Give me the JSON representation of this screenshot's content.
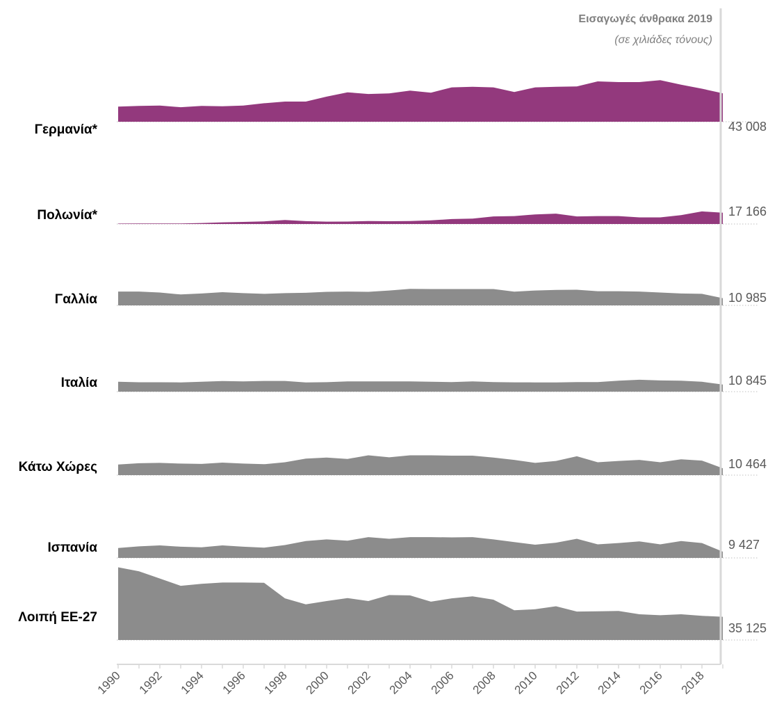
{
  "chart_data": {
    "type": "area",
    "title": "Εισαγωγές άνθρακα 2019",
    "subtitle": "(σε χιλιάδες τόνους)",
    "x": [
      1990,
      1991,
      1992,
      1993,
      1994,
      1995,
      1996,
      1997,
      1998,
      1999,
      2000,
      2001,
      2002,
      2003,
      2004,
      2005,
      2006,
      2007,
      2008,
      2009,
      2010,
      2011,
      2012,
      2013,
      2014,
      2015,
      2016,
      2017,
      2018,
      2019
    ],
    "x_tick_labels": [
      "1990",
      "1992",
      "1994",
      "1996",
      "1998",
      "2000",
      "2002",
      "2004",
      "2006",
      "2008",
      "2010",
      "2012",
      "2014",
      "2016",
      "2018"
    ],
    "grid": false,
    "legend": "none",
    "series": [
      {
        "name": "Γερμανία*",
        "value_label": "43 008",
        "color": "#93397d",
        "values": [
          23000,
          24000,
          24500,
          22000,
          24000,
          23500,
          24500,
          28000,
          30500,
          30500,
          38000,
          44500,
          42000,
          43000,
          47000,
          44000,
          52000,
          53000,
          52000,
          45000,
          52000,
          53000,
          53500,
          61000,
          60000,
          60000,
          63000,
          56000,
          50000,
          43008
        ]
      },
      {
        "name": "Πολωνία*",
        "value_label": "17 166",
        "color": "#93397d",
        "values": [
          600,
          700,
          800,
          800,
          1500,
          2500,
          3200,
          4000,
          6000,
          4300,
          3600,
          3700,
          4500,
          4200,
          4400,
          5500,
          7500,
          8200,
          11500,
          12000,
          14500,
          15700,
          11500,
          12000,
          12000,
          10000,
          10000,
          13500,
          19000,
          17166
        ]
      },
      {
        "name": "Γαλλία",
        "value_label": "10 985",
        "color": "#8c8c8c",
        "values": [
          21000,
          21000,
          19500,
          16500,
          18000,
          20000,
          18500,
          17500,
          18500,
          19000,
          20500,
          21000,
          20500,
          22500,
          25000,
          24700,
          24700,
          24700,
          24700,
          20800,
          22500,
          23500,
          23700,
          21500,
          21500,
          21000,
          19500,
          18000,
          17500,
          10985
        ]
      },
      {
        "name": "Ιταλία",
        "value_label": "10 845",
        "color": "#8c8c8c",
        "values": [
          15000,
          14200,
          14200,
          14000,
          15000,
          16000,
          15500,
          16200,
          16200,
          14000,
          14300,
          15500,
          15500,
          15500,
          15500,
          15000,
          14500,
          15500,
          14500,
          14100,
          14000,
          14000,
          14400,
          14400,
          16500,
          18000,
          17000,
          16500,
          15000,
          10845
        ]
      },
      {
        "name": "Κάτω Χώρες",
        "value_label": "10 464",
        "color": "#8c8c8c",
        "values": [
          16000,
          18000,
          18500,
          17500,
          17000,
          19000,
          17500,
          16500,
          19500,
          25000,
          26500,
          24500,
          30000,
          27000,
          30000,
          30000,
          29500,
          29500,
          26500,
          23000,
          18500,
          21500,
          28500,
          19500,
          21500,
          23000,
          19500,
          24000,
          22000,
          10464
        ]
      },
      {
        "name": "Ισπανία",
        "value_label": "9 427",
        "color": "#8c8c8c",
        "values": [
          15000,
          17500,
          19000,
          17000,
          16000,
          19000,
          17000,
          15500,
          19500,
          25500,
          28000,
          26000,
          31500,
          29000,
          31500,
          31500,
          31000,
          31500,
          28000,
          24000,
          20000,
          23000,
          29000,
          20500,
          22500,
          25000,
          20500,
          25500,
          22500,
          9427
        ]
      },
      {
        "name": "Λοιπή ΕΕ-27",
        "value_label": "35 125",
        "color": "#8c8c8c",
        "values": [
          110000,
          104000,
          93000,
          82000,
          85000,
          87000,
          87000,
          86500,
          63000,
          54000,
          59000,
          63500,
          59000,
          68000,
          67500,
          58000,
          63000,
          66000,
          61000,
          45000,
          46500,
          51000,
          43000,
          43500,
          44000,
          39000,
          37500,
          39000,
          36500,
          35125
        ]
      }
    ]
  }
}
